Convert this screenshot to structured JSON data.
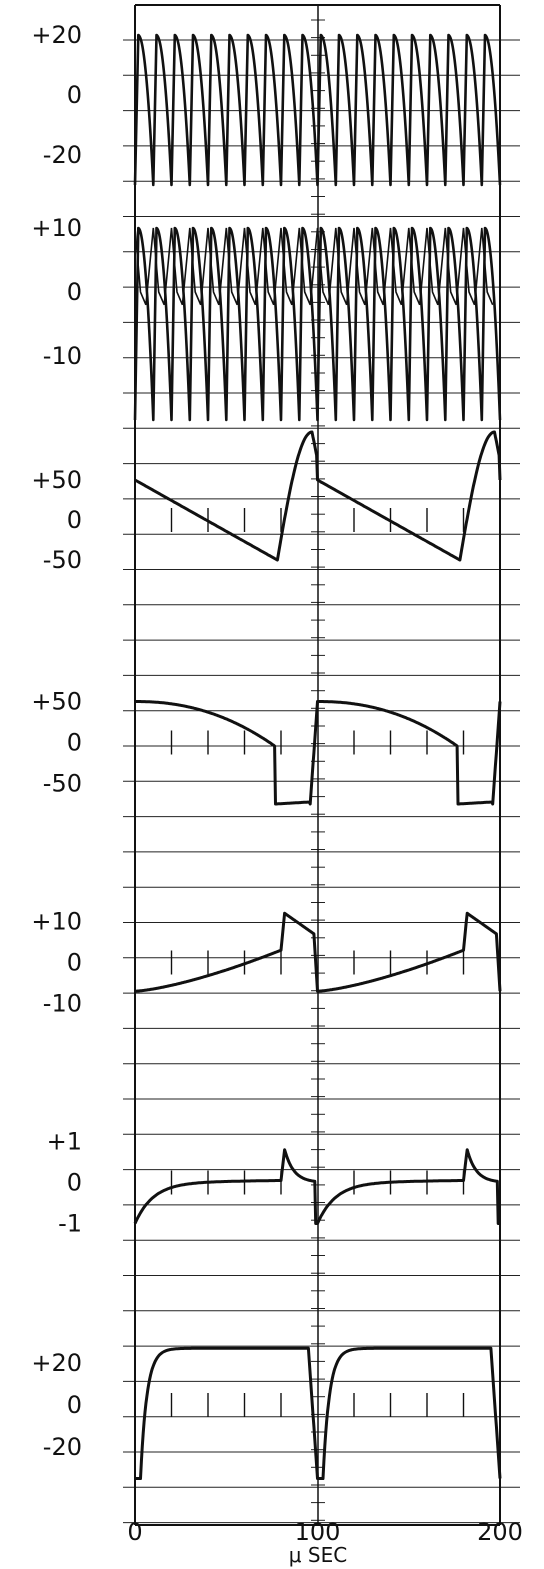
{
  "chart_data": {
    "type": "line",
    "xlabel": "μ SEC",
    "x_ticks": [
      {
        "value": 0,
        "label": "0"
      },
      {
        "value": 100,
        "label": "100"
      },
      {
        "value": 200,
        "label": "200"
      }
    ],
    "xlim": [
      0,
      200
    ],
    "grid": true,
    "panels": [
      {
        "name": "panel-1",
        "ylim": [
          -40,
          30
        ],
        "ticks": [
          {
            "value": 20,
            "label": "+20"
          },
          {
            "value": 0,
            "label": "0"
          },
          {
            "value": -20,
            "label": "-20"
          }
        ],
        "waveform": "sawtooth-fast",
        "cycles": 20,
        "high": 20,
        "low": -30
      },
      {
        "name": "panel-2",
        "ylim": [
          -20,
          10
        ],
        "ticks": [
          {
            "value": 10,
            "label": "+10"
          },
          {
            "value": 0,
            "label": "0"
          },
          {
            "value": -10,
            "label": "-10"
          }
        ],
        "waveform": "sawtooth-fast-alt",
        "cycles": 20,
        "high": 10,
        "low": -20
      },
      {
        "name": "panel-3",
        "ylim": [
          -125,
          125
        ],
        "ticks": [
          {
            "value": 50,
            "label": "+50"
          },
          {
            "value": 0,
            "label": "0"
          },
          {
            "value": -50,
            "label": "-50"
          }
        ],
        "waveform": "ramp-recover",
        "period": 100,
        "start": 50,
        "trough": -50,
        "trough_at": 78,
        "peak": 110,
        "peak_at": 97
      },
      {
        "name": "panel-4",
        "ylim": [
          -125,
          125
        ],
        "ticks": [
          {
            "value": 50,
            "label": "+50"
          },
          {
            "value": 0,
            "label": "0"
          },
          {
            "value": -50,
            "label": "-50"
          }
        ],
        "waveform": "decay-step",
        "period": 100,
        "start": 50,
        "drop_at": 77,
        "before_drop": -5,
        "low": -75
      },
      {
        "name": "panel-5",
        "ylim": [
          -25,
          25
        ],
        "ticks": [
          {
            "value": 10,
            "label": "+10"
          },
          {
            "value": 0,
            "label": "0"
          },
          {
            "value": -10,
            "label": "-10"
          }
        ],
        "waveform": "rise-spike",
        "period": 100,
        "start": -7,
        "spike_at": 80,
        "spike": 12,
        "end": 7
      },
      {
        "name": "panel-6",
        "ylim": [
          -2.5,
          2.5
        ],
        "ticks": [
          {
            "value": 1,
            "label": "+1"
          },
          {
            "value": 0,
            "label": "0"
          },
          {
            "value": -1,
            "label": "-1"
          }
        ],
        "waveform": "settle-spike",
        "period": 100,
        "start": -1,
        "spike_at": 80,
        "spike": 0.8
      },
      {
        "name": "panel-7",
        "ylim": [
          -50,
          50
        ],
        "ticks": [
          {
            "value": 20,
            "label": "+20"
          },
          {
            "value": 0,
            "label": "0"
          },
          {
            "value": -20,
            "label": "-20"
          }
        ],
        "waveform": "square-rounded",
        "period": 100,
        "high": 27,
        "low": -35,
        "fall_at": 95
      }
    ]
  }
}
